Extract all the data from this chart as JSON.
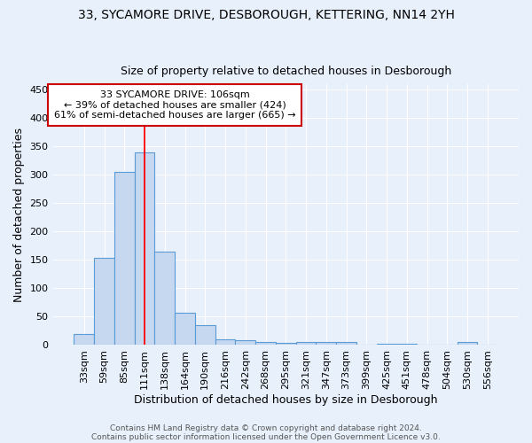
{
  "title1": "33, SYCAMORE DRIVE, DESBOROUGH, KETTERING, NN14 2YH",
  "title2": "Size of property relative to detached houses in Desborough",
  "xlabel": "Distribution of detached houses by size in Desborough",
  "ylabel": "Number of detached properties",
  "categories": [
    "33sqm",
    "59sqm",
    "85sqm",
    "111sqm",
    "138sqm",
    "164sqm",
    "190sqm",
    "216sqm",
    "242sqm",
    "268sqm",
    "295sqm",
    "321sqm",
    "347sqm",
    "373sqm",
    "399sqm",
    "425sqm",
    "451sqm",
    "478sqm",
    "504sqm",
    "530sqm",
    "556sqm"
  ],
  "values": [
    18,
    153,
    305,
    340,
    165,
    57,
    35,
    9,
    7,
    5,
    3,
    5,
    5,
    4,
    0,
    2,
    2,
    0,
    0,
    4,
    0
  ],
  "bar_color": "#c5d8f0",
  "bar_edge_color": "#5b9bd5",
  "bg_color": "#e8f0fb",
  "grid_color": "#ffffff",
  "red_line_x": 3.0,
  "annotation_line1": "33 SYCAMORE DRIVE: 106sqm",
  "annotation_line2": "← 39% of detached houses are smaller (424)",
  "annotation_line3": "61% of semi-detached houses are larger (665) →",
  "annotation_box_color": "#ffffff",
  "annotation_box_edge": "#cc0000",
  "footer1": "Contains HM Land Registry data © Crown copyright and database right 2024.",
  "footer2": "Contains public sector information licensed under the Open Government Licence v3.0.",
  "ylim": [
    0,
    460
  ],
  "yticks": [
    0,
    50,
    100,
    150,
    200,
    250,
    300,
    350,
    400,
    450
  ]
}
